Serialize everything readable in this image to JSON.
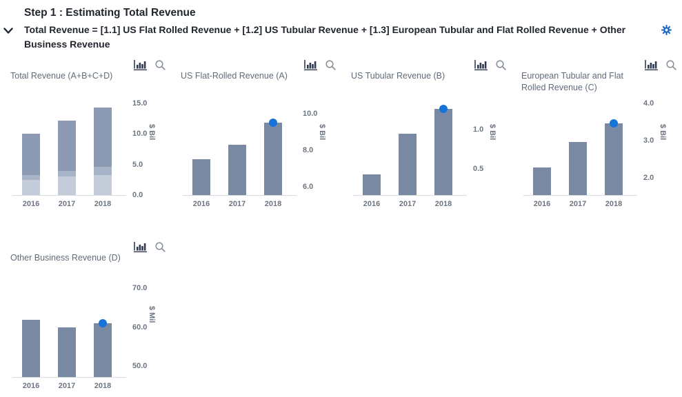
{
  "header": {
    "title": "Step 1 : Estimating Total Revenue",
    "formula": "Total Revenue = [1.1] US Flat Rolled Revenue + [1.2] US Tubular Revenue + [1.3] European Tubular and Flat Rolled Revenue + Other Business Revenue"
  },
  "colors": {
    "bar": "#7a89a3",
    "stack_bottom": "#c4ccda",
    "stack_middle": "#a7b3c6",
    "stack_top": "#8c9ab3",
    "forecast_dot": "#1673d8",
    "gear": "#1766c2",
    "chart_icon": "#2e3950",
    "magnifier_icon": "#8b929c",
    "header_text": "#21252e",
    "chart_title_text": "#606b79",
    "axis_text": "#6b7480",
    "axis_line": "#d8dbe0"
  },
  "chart_data": [
    {
      "id": "total-revenue",
      "type": "bar",
      "stacked": true,
      "title": "Total Revenue (A+B+C+D)",
      "ylabel": "$ Bil",
      "categories": [
        "2016",
        "2017",
        "2018"
      ],
      "series": [
        {
          "name": "stack-bottom",
          "values": [
            2.5,
            3.0,
            3.3
          ]
        },
        {
          "name": "stack-middle",
          "values": [
            0.8,
            0.9,
            1.3
          ]
        },
        {
          "name": "stack-top",
          "values": [
            6.7,
            8.3,
            9.7
          ]
        }
      ],
      "totals": [
        10.0,
        12.2,
        14.3
      ],
      "yticks": [
        {
          "value": 0,
          "label": "0.0"
        },
        {
          "value": 5,
          "label": "5.0"
        },
        {
          "value": 10,
          "label": "10.0"
        },
        {
          "value": 15,
          "label": "15.0"
        }
      ],
      "ylim": [
        0,
        16.1
      ],
      "forecast_dot_index": null,
      "grid": false,
      "legend": "none"
    },
    {
      "id": "us-flat-rolled",
      "type": "bar",
      "stacked": false,
      "title": "US Flat-Rolled Revenue (A)",
      "ylabel": "$ Bil",
      "categories": [
        "2016",
        "2017",
        "2018"
      ],
      "values": [
        7.5,
        8.3,
        9.5
      ],
      "yticks": [
        {
          "value": 6,
          "label": "6.0"
        },
        {
          "value": 8,
          "label": "8.0"
        },
        {
          "value": 10,
          "label": "10.0"
        }
      ],
      "ylim": [
        5.55,
        10.95
      ],
      "forecast_dot_index": 2,
      "grid": false,
      "legend": "none"
    },
    {
      "id": "us-tubular",
      "type": "bar",
      "stacked": false,
      "title": "US Tubular Revenue (B)",
      "ylabel": "$ Bil",
      "categories": [
        "2016",
        "2017",
        "2018"
      ],
      "values": [
        0.43,
        0.95,
        1.26
      ],
      "yticks": [
        {
          "value": 0.5,
          "label": "0.5"
        },
        {
          "value": 1.0,
          "label": "1.0"
        }
      ],
      "ylim": [
        0.17,
        1.42
      ],
      "forecast_dot_index": 2,
      "grid": false,
      "legend": "none"
    },
    {
      "id": "european-tubular-flat-rolled",
      "type": "bar",
      "stacked": false,
      "title": "European Tubular and Flat Rolled Revenue (C)",
      "ylabel": "$ Bil",
      "categories": [
        "2016",
        "2017",
        "2018"
      ],
      "values": [
        2.28,
        2.96,
        3.45
      ],
      "yticks": [
        {
          "value": 2,
          "label": "2.0"
        },
        {
          "value": 3,
          "label": "3.0"
        },
        {
          "value": 4,
          "label": "4.0"
        }
      ],
      "ylim": [
        1.53,
        4.18
      ],
      "forecast_dot_index": 2,
      "grid": false,
      "legend": "none"
    },
    {
      "id": "other-business",
      "type": "bar",
      "stacked": false,
      "title": "Other Business Revenue (D)",
      "ylabel": "$ Mil",
      "categories": [
        "2016",
        "2017",
        "2018"
      ],
      "values": [
        61.9,
        60.0,
        61.0
      ],
      "yticks": [
        {
          "value": 50,
          "label": "50.0"
        },
        {
          "value": 60,
          "label": "60.0"
        },
        {
          "value": 70,
          "label": "70.0"
        }
      ],
      "ylim": [
        47.2,
        72.5
      ],
      "forecast_dot_index": 2,
      "grid": false,
      "legend": "none"
    }
  ]
}
